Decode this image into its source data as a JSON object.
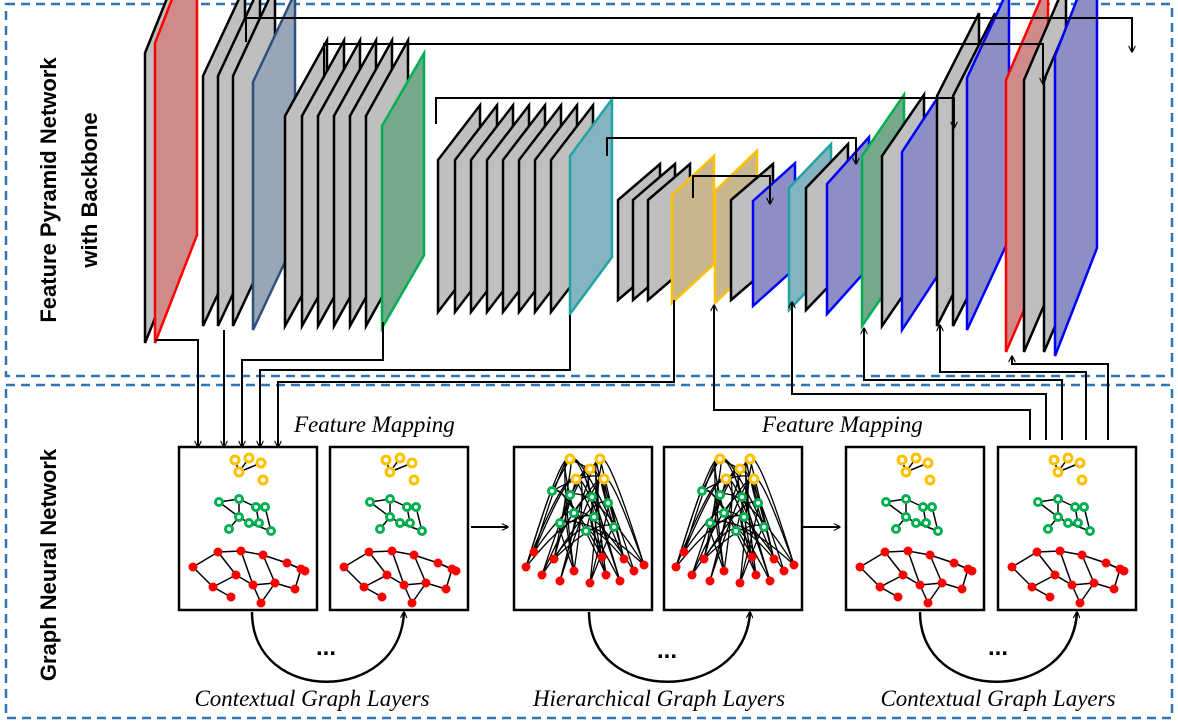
{
  "sections": {
    "top": {
      "label_line1": "Feature Pyramid Network",
      "label_line2": "with Backbone"
    },
    "bottom": {
      "label": "Graph Neural Network"
    }
  },
  "captions": {
    "feature_mapping_left": "Feature Mapping",
    "feature_mapping_right": "Feature Mapping",
    "contextual_left": "Contextual Graph Layers",
    "hierarchical": "Hierarchical Graph Layers",
    "contextual_right": "Contextual Graph Layers",
    "ellipsis": "..."
  },
  "colors": {
    "dashed_border": "#2e75b6",
    "gray_fill": "#bfbfbf",
    "red_stroke": "#ff0000",
    "red_fill": "#d08a8a",
    "steel_stroke": "#2e4f7f",
    "steel_fill": "#97a7b7",
    "green_stroke": "#00b050",
    "green_fill": "#76a98b",
    "teal_stroke": "#1fa3a3",
    "teal_fill": "#84b4bf",
    "yellow_stroke": "#ffc000",
    "yellow_fill": "#c8b78d",
    "blue_stroke": "#0000ff",
    "blue_fill": "#8d8ec4",
    "node_yellow": "#ffc000",
    "node_green": "#00b050",
    "node_red": "#ff0000"
  }
}
